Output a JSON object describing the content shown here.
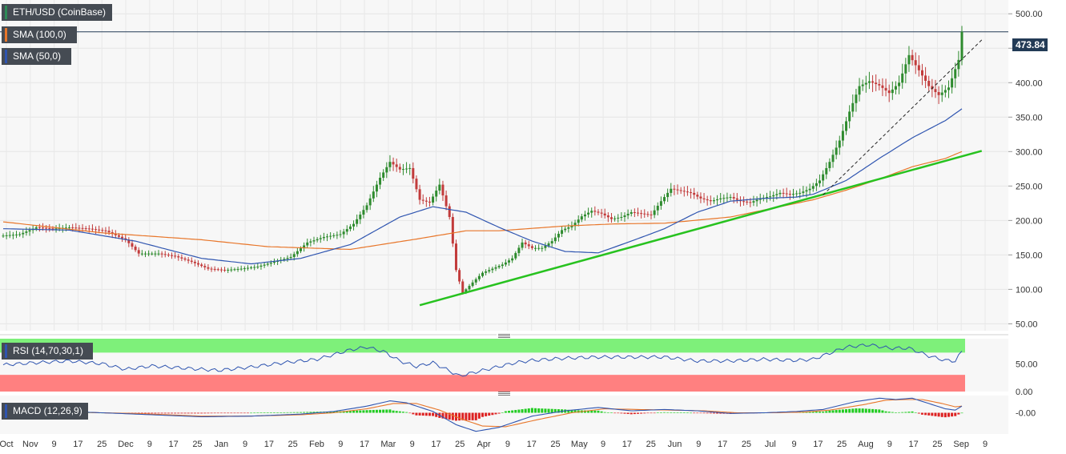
{
  "legend": {
    "main": "ETH/USD (CoinBase)",
    "sma100": "SMA (100,0)",
    "sma50": "SMA (50,0)",
    "rsi": "RSI (14,70,30,1)",
    "macd": "MACD (12,26,9)"
  },
  "current_price": "473.84",
  "colors": {
    "up": "#2e8b2e",
    "down": "#c23b3b",
    "sma100": "#e8762a",
    "sma50": "#2f55b0",
    "trendline": "#27c21f",
    "rsi_line": "#2f55b0",
    "rsi_overbought": "#7ef07a",
    "rsi_oversold": "#ff8080",
    "macd_line": "#2f55b0",
    "signal_line": "#e8762a",
    "hist_up": "#22cc22",
    "hist_down": "#dd2222"
  },
  "chart_data": [
    {
      "type": "candlestick",
      "title": "ETH/USD (CoinBase)",
      "ylim": [
        40,
        520
      ],
      "y_ticks": [
        "500.00",
        "450.00",
        "400.00",
        "350.00",
        "300.00",
        "250.00",
        "200.00",
        "150.00",
        "100.00",
        "50.00"
      ],
      "x_ticks": [
        "Oct",
        "Nov",
        "9",
        "17",
        "25",
        "Dec",
        "9",
        "17",
        "25",
        "Jan",
        "9",
        "17",
        "25",
        "Feb",
        "9",
        "17",
        "Mar",
        "9",
        "17",
        "25",
        "Apr",
        "9",
        "17",
        "25",
        "May",
        "9",
        "17",
        "25",
        "Jun",
        "9",
        "17",
        "25",
        "Jul",
        "9",
        "17",
        "25",
        "Aug",
        "9",
        "17",
        "25",
        "Sep",
        "9"
      ],
      "price_anchors": [
        [
          0,
          178
        ],
        [
          5,
          180
        ],
        [
          10,
          190
        ],
        [
          15,
          188
        ],
        [
          20,
          190
        ],
        [
          26,
          188
        ],
        [
          31,
          185
        ],
        [
          37,
          172
        ],
        [
          41,
          152
        ],
        [
          47,
          152
        ],
        [
          52,
          148
        ],
        [
          57,
          140
        ],
        [
          62,
          130
        ],
        [
          67,
          128
        ],
        [
          72,
          130
        ],
        [
          77,
          133
        ],
        [
          82,
          140
        ],
        [
          87,
          147
        ],
        [
          92,
          168
        ],
        [
          97,
          176
        ],
        [
          102,
          180
        ],
        [
          106,
          195
        ],
        [
          110,
          222
        ],
        [
          114,
          262
        ],
        [
          117,
          285
        ],
        [
          120,
          274
        ],
        [
          123,
          276
        ],
        [
          126,
          230
        ],
        [
          129,
          226
        ],
        [
          132,
          252
        ],
        [
          135,
          205
        ],
        [
          137,
          128
        ],
        [
          139,
          95
        ],
        [
          142,
          110
        ],
        [
          145,
          124
        ],
        [
          148,
          130
        ],
        [
          151,
          136
        ],
        [
          154,
          145
        ],
        [
          157,
          168
        ],
        [
          160,
          160
        ],
        [
          163,
          160
        ],
        [
          166,
          170
        ],
        [
          169,
          186
        ],
        [
          172,
          192
        ],
        [
          175,
          206
        ],
        [
          178,
          214
        ],
        [
          181,
          210
        ],
        [
          184,
          202
        ],
        [
          187,
          205
        ],
        [
          190,
          212
        ],
        [
          193,
          210
        ],
        [
          196,
          208
        ],
        [
          199,
          228
        ],
        [
          202,
          246
        ],
        [
          205,
          243
        ],
        [
          208,
          240
        ],
        [
          211,
          232
        ],
        [
          214,
          228
        ],
        [
          217,
          232
        ],
        [
          220,
          234
        ],
        [
          223,
          228
        ],
        [
          226,
          226
        ],
        [
          229,
          232
        ],
        [
          232,
          235
        ],
        [
          235,
          240
        ],
        [
          238,
          238
        ],
        [
          241,
          240
        ],
        [
          244,
          246
        ],
        [
          247,
          258
        ],
        [
          250,
          285
        ],
        [
          253,
          316
        ],
        [
          256,
          358
        ],
        [
          259,
          395
        ],
        [
          262,
          402
        ],
        [
          265,
          396
        ],
        [
          268,
          385
        ],
        [
          271,
          400
        ],
        [
          274,
          440
        ],
        [
          277,
          418
        ],
        [
          280,
          395
        ],
        [
          283,
          382
        ],
        [
          286,
          393
        ],
        [
          289,
          433
        ],
        [
          290,
          473.84
        ]
      ],
      "sma50_anchors": [
        [
          0,
          188
        ],
        [
          20,
          186
        ],
        [
          40,
          170
        ],
        [
          60,
          145
        ],
        [
          75,
          137
        ],
        [
          90,
          145
        ],
        [
          105,
          165
        ],
        [
          120,
          205
        ],
        [
          130,
          220
        ],
        [
          140,
          212
        ],
        [
          150,
          190
        ],
        [
          160,
          170
        ],
        [
          170,
          155
        ],
        [
          180,
          153
        ],
        [
          190,
          170
        ],
        [
          200,
          188
        ],
        [
          210,
          212
        ],
        [
          220,
          228
        ],
        [
          230,
          232
        ],
        [
          240,
          234
        ],
        [
          245,
          238
        ],
        [
          255,
          258
        ],
        [
          265,
          290
        ],
        [
          275,
          320
        ],
        [
          285,
          345
        ],
        [
          290,
          362
        ]
      ],
      "sma100_anchors": [
        [
          0,
          198
        ],
        [
          30,
          182
        ],
        [
          60,
          172
        ],
        [
          80,
          162
        ],
        [
          105,
          158
        ],
        [
          125,
          173
        ],
        [
          140,
          185
        ],
        [
          150,
          185
        ],
        [
          170,
          192
        ],
        [
          185,
          195
        ],
        [
          200,
          196
        ],
        [
          220,
          205
        ],
        [
          235,
          220
        ],
        [
          245,
          230
        ],
        [
          255,
          244
        ],
        [
          265,
          260
        ],
        [
          275,
          278
        ],
        [
          285,
          290
        ],
        [
          290,
          300
        ]
      ],
      "trendline_green": [
        [
          126,
          77
        ],
        [
          296,
          301
        ]
      ],
      "trendline_dashed": [
        [
          248,
          237
        ],
        [
          296,
          462
        ]
      ],
      "horizontal_level": 473.84
    },
    {
      "type": "line",
      "title": "RSI (14,70,30,1)",
      "ylim": [
        0,
        95
      ],
      "y_ticks": [
        "50.00",
        "0.00"
      ],
      "overbought_zone": [
        70,
        95
      ],
      "oversold_zone": [
        0,
        30
      ],
      "rsi_anchors": [
        [
          0,
          48
        ],
        [
          10,
          52
        ],
        [
          20,
          55
        ],
        [
          30,
          50
        ],
        [
          37,
          40
        ],
        [
          45,
          46
        ],
        [
          55,
          42
        ],
        [
          65,
          38
        ],
        [
          75,
          44
        ],
        [
          85,
          52
        ],
        [
          95,
          58
        ],
        [
          105,
          75
        ],
        [
          110,
          80
        ],
        [
          115,
          72
        ],
        [
          120,
          55
        ],
        [
          125,
          45
        ],
        [
          130,
          52
        ],
        [
          134,
          40
        ],
        [
          138,
          28
        ],
        [
          145,
          38
        ],
        [
          150,
          45
        ],
        [
          155,
          52
        ],
        [
          160,
          56
        ],
        [
          170,
          60
        ],
        [
          180,
          62
        ],
        [
          190,
          62
        ],
        [
          200,
          62
        ],
        [
          210,
          55
        ],
        [
          220,
          55
        ],
        [
          230,
          58
        ],
        [
          240,
          56
        ],
        [
          245,
          58
        ],
        [
          255,
          80
        ],
        [
          262,
          84
        ],
        [
          268,
          78
        ],
        [
          274,
          78
        ],
        [
          280,
          64
        ],
        [
          285,
          56
        ],
        [
          288,
          55
        ],
        [
          290,
          72
        ]
      ]
    },
    {
      "type": "line",
      "title": "MACD (12,26,9)",
      "ylim": [
        -32,
        26
      ],
      "y_ticks": [
        "-0.00"
      ],
      "macd_anchors": [
        [
          0,
          0
        ],
        [
          20,
          2
        ],
        [
          40,
          -2
        ],
        [
          60,
          -6
        ],
        [
          75,
          -5
        ],
        [
          90,
          -2
        ],
        [
          100,
          2
        ],
        [
          110,
          10
        ],
        [
          117,
          18
        ],
        [
          122,
          15
        ],
        [
          130,
          2
        ],
        [
          137,
          -18
        ],
        [
          143,
          -28
        ],
        [
          150,
          -22
        ],
        [
          160,
          -5
        ],
        [
          170,
          3
        ],
        [
          180,
          8
        ],
        [
          190,
          3
        ],
        [
          200,
          5
        ],
        [
          210,
          3
        ],
        [
          220,
          -1
        ],
        [
          230,
          0
        ],
        [
          240,
          2
        ],
        [
          248,
          5
        ],
        [
          258,
          17
        ],
        [
          265,
          22
        ],
        [
          270,
          20
        ],
        [
          275,
          22
        ],
        [
          280,
          14
        ],
        [
          285,
          6
        ],
        [
          288,
          4
        ],
        [
          290,
          10
        ]
      ],
      "signal_anchors": [
        [
          0,
          0
        ],
        [
          20,
          1
        ],
        [
          40,
          -1
        ],
        [
          60,
          -5
        ],
        [
          75,
          -5
        ],
        [
          90,
          -3
        ],
        [
          100,
          0
        ],
        [
          110,
          6
        ],
        [
          118,
          14
        ],
        [
          125,
          14
        ],
        [
          132,
          4
        ],
        [
          139,
          -10
        ],
        [
          145,
          -20
        ],
        [
          152,
          -21
        ],
        [
          162,
          -10
        ],
        [
          172,
          0
        ],
        [
          182,
          6
        ],
        [
          192,
          5
        ],
        [
          202,
          4
        ],
        [
          212,
          3
        ],
        [
          222,
          0
        ],
        [
          232,
          0
        ],
        [
          242,
          1
        ],
        [
          250,
          4
        ],
        [
          260,
          12
        ],
        [
          267,
          19
        ],
        [
          273,
          20
        ],
        [
          278,
          20
        ],
        [
          284,
          14
        ],
        [
          288,
          9
        ],
        [
          290,
          10
        ]
      ]
    }
  ]
}
